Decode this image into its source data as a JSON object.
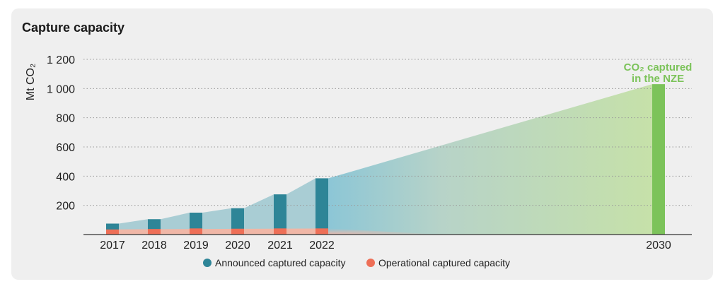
{
  "chart_data": {
    "type": "bar",
    "title": "Capture capacity",
    "ylabel": "Mt CO₂",
    "ylim": [
      0,
      1200
    ],
    "yticks": [
      200,
      400,
      600,
      800,
      1000,
      1200
    ],
    "ytick_labels": [
      "200",
      "400",
      "600",
      "800",
      "1 000",
      "1 200"
    ],
    "categories": [
      "2017",
      "2018",
      "2019",
      "2020",
      "2021",
      "2022",
      "2030"
    ],
    "series": [
      {
        "name": "Announced captured capacity",
        "color": "#2e8597",
        "values": [
          75,
          105,
          150,
          180,
          275,
          385,
          null
        ]
      },
      {
        "name": "Operational captured capacity",
        "color": "#ee6f57",
        "values": [
          35,
          38,
          42,
          40,
          42,
          42,
          null
        ]
      }
    ],
    "nze": {
      "label_line1": "CO₂ captured",
      "label_line2": "in the NZE",
      "year": "2030",
      "value": 1030,
      "color": "#7cc35a"
    },
    "grid": "horizontal dotted",
    "legend_position": "bottom"
  }
}
